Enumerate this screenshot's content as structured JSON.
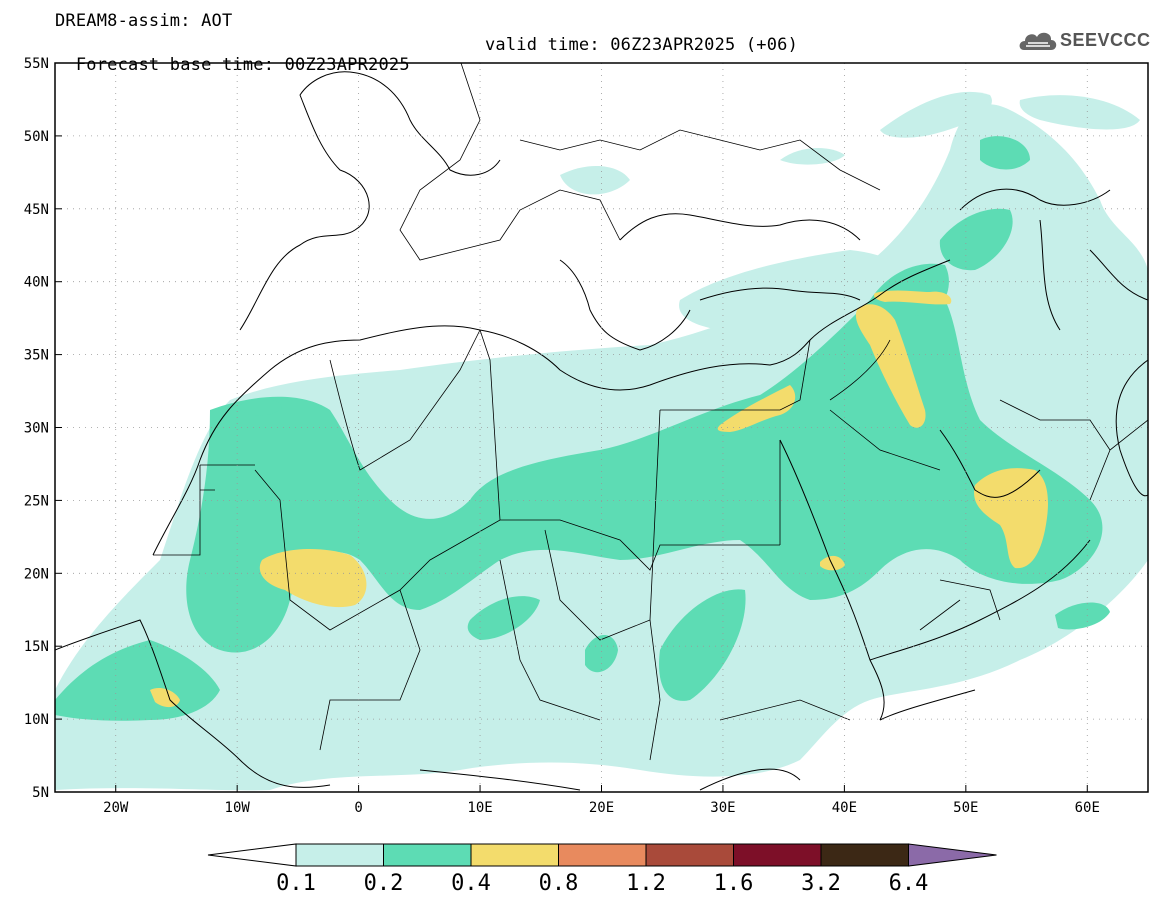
{
  "header": {
    "model_line": "DREAM8-assim: AOT",
    "base_time": "Forecast base time: 00Z23APR2025",
    "valid_time": "valid time: 06Z23APR2025 (+06)"
  },
  "logo": {
    "icon": "cloud-icon",
    "text": "SEEVCCC"
  },
  "map": {
    "lon_range": [
      -25,
      65
    ],
    "lat_range": [
      5,
      55
    ],
    "lon_ticks": [
      {
        "value": -20,
        "label": "20W"
      },
      {
        "value": -10,
        "label": "10W"
      },
      {
        "value": 0,
        "label": "0"
      },
      {
        "value": 10,
        "label": "10E"
      },
      {
        "value": 20,
        "label": "20E"
      },
      {
        "value": 30,
        "label": "30E"
      },
      {
        "value": 40,
        "label": "40E"
      },
      {
        "value": 50,
        "label": "50E"
      },
      {
        "value": 60,
        "label": "60E"
      }
    ],
    "lat_ticks": [
      {
        "value": 55,
        "label": "55N"
      },
      {
        "value": 50,
        "label": "50N"
      },
      {
        "value": 45,
        "label": "45N"
      },
      {
        "value": 40,
        "label": "40N"
      },
      {
        "value": 35,
        "label": "35N"
      },
      {
        "value": 30,
        "label": "30N"
      },
      {
        "value": 25,
        "label": "25N"
      },
      {
        "value": 20,
        "label": "20N"
      },
      {
        "value": 15,
        "label": "15N"
      },
      {
        "value": 10,
        "label": "10N"
      },
      {
        "value": 5,
        "label": "5N"
      }
    ],
    "grid": "dotted"
  },
  "colorbar": {
    "levels": [
      "0.1",
      "0.2",
      "0.4",
      "0.8",
      "1.2",
      "1.6",
      "3.2",
      "6.4"
    ],
    "colors": [
      "#ffffff",
      "#c6efe9",
      "#5ddcb4",
      "#f3dc6c",
      "#e88a5e",
      "#a94a3a",
      "#7d0f28",
      "#3c2815",
      "#8b6aa8"
    ]
  }
}
